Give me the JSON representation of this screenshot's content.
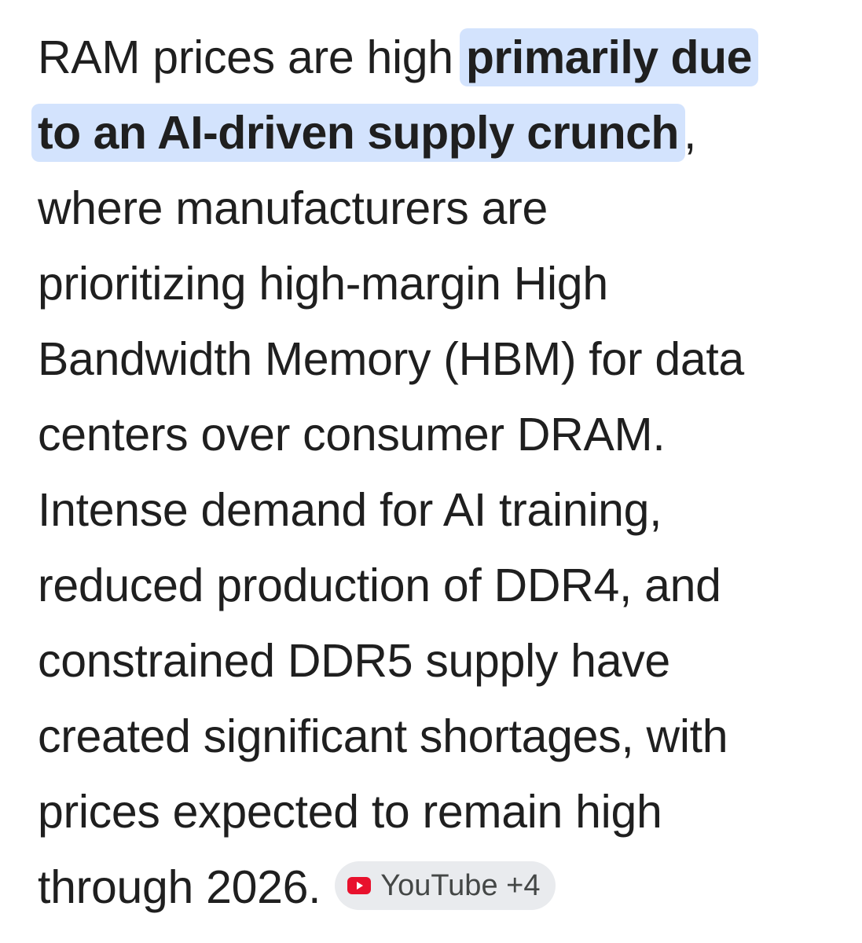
{
  "answer": {
    "line1_text": "RAM prices are high ",
    "highlight_line1": "primarily due",
    "highlight_line2": "to an AI-driven supply crunch",
    "line2_tail": ",",
    "lines": [
      "where manufacturers are",
      "prioritizing high-margin High",
      "Bandwidth Memory (HBM) for data",
      "centers over consumer DRAM.",
      "Intense demand for AI training,",
      "reduced production of DDR4, and",
      "constrained DDR5 supply have",
      "created significant shortages, with",
      "prices expected to remain high"
    ],
    "last_line": "through 2026."
  },
  "source_chip": {
    "icon": "youtube-icon",
    "label": "YouTube +4",
    "icon_color": "#e8112d"
  },
  "colors": {
    "text": "#1f1f1f",
    "highlight_bg": "#d3e3fd",
    "chip_bg": "#e9ebee",
    "chip_text": "#444746"
  }
}
